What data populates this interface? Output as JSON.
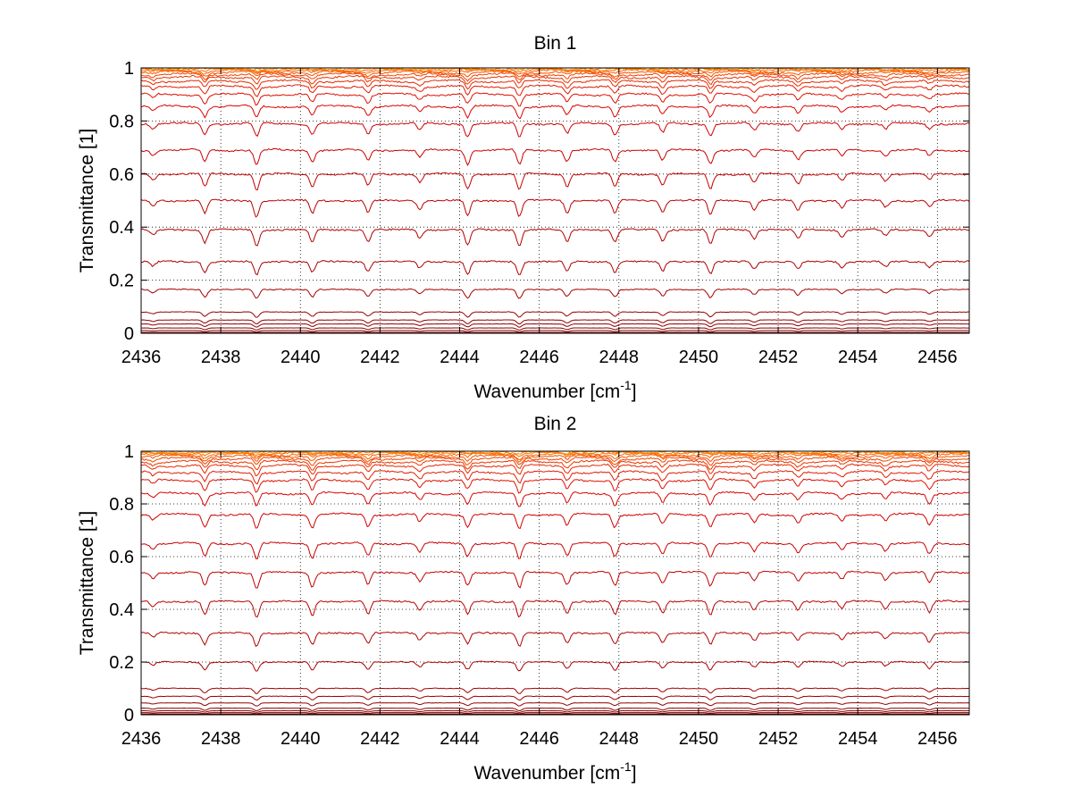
{
  "chart_data": [
    {
      "type": "line",
      "title": "Bin 1",
      "xlabel": "Wavenumber [cm",
      "xlabel_sup": "-1",
      "xlabel_suffix": "]",
      "ylabel": "Transmittance [1]",
      "xlim": [
        2436,
        2456.8
      ],
      "ylim": [
        0,
        1
      ],
      "grid": true,
      "legend": "none",
      "xticks": [
        2436,
        2438,
        2440,
        2442,
        2444,
        2446,
        2448,
        2450,
        2452,
        2454,
        2456
      ],
      "yticks": [
        0,
        0.2,
        0.4,
        0.6,
        0.8,
        1
      ],
      "ytick_labels": [
        "0",
        "0.2",
        "0.4",
        "0.6",
        "0.8",
        "1"
      ],
      "absorption_lines": [
        {
          "x": 2436.3,
          "depth": 0.35
        },
        {
          "x": 2437.6,
          "depth": 0.8
        },
        {
          "x": 2438.9,
          "depth": 1.0
        },
        {
          "x": 2440.3,
          "depth": 0.8
        },
        {
          "x": 2441.7,
          "depth": 0.75
        },
        {
          "x": 2443.0,
          "depth": 0.5
        },
        {
          "x": 2444.2,
          "depth": 0.95
        },
        {
          "x": 2445.5,
          "depth": 1.0
        },
        {
          "x": 2446.7,
          "depth": 0.75
        },
        {
          "x": 2447.9,
          "depth": 0.8
        },
        {
          "x": 2449.1,
          "depth": 0.7
        },
        {
          "x": 2450.3,
          "depth": 0.9
        },
        {
          "x": 2451.4,
          "depth": 0.55
        },
        {
          "x": 2452.5,
          "depth": 0.6
        },
        {
          "x": 2453.6,
          "depth": 0.45
        },
        {
          "x": 2454.7,
          "depth": 0.4
        },
        {
          "x": 2455.8,
          "depth": 0.4
        }
      ],
      "series": [
        {
          "baseline": 0.003,
          "depth": 0.0,
          "color": "#7a0000"
        },
        {
          "baseline": 0.01,
          "depth": 0.005,
          "color": "#7f0000"
        },
        {
          "baseline": 0.02,
          "depth": 0.008,
          "color": "#860000"
        },
        {
          "baseline": 0.035,
          "depth": 0.012,
          "color": "#8c0000"
        },
        {
          "baseline": 0.05,
          "depth": 0.015,
          "color": "#930000"
        },
        {
          "baseline": 0.08,
          "depth": 0.02,
          "color": "#9b0000"
        },
        {
          "baseline": 0.165,
          "depth": 0.035,
          "color": "#a30000"
        },
        {
          "baseline": 0.27,
          "depth": 0.05,
          "color": "#aa0000"
        },
        {
          "baseline": 0.39,
          "depth": 0.06,
          "color": "#b20000"
        },
        {
          "baseline": 0.5,
          "depth": 0.06,
          "color": "#ba0000"
        },
        {
          "baseline": 0.6,
          "depth": 0.06,
          "color": "#c20000"
        },
        {
          "baseline": 0.69,
          "depth": 0.055,
          "color": "#ca0000"
        },
        {
          "baseline": 0.79,
          "depth": 0.05,
          "color": "#d10000"
        },
        {
          "baseline": 0.855,
          "depth": 0.045,
          "color": "#d80500"
        },
        {
          "baseline": 0.9,
          "depth": 0.04,
          "color": "#de1000"
        },
        {
          "baseline": 0.93,
          "depth": 0.035,
          "color": "#e31c00"
        },
        {
          "baseline": 0.95,
          "depth": 0.03,
          "color": "#e82800"
        },
        {
          "baseline": 0.965,
          "depth": 0.025,
          "color": "#ec3600"
        },
        {
          "baseline": 0.975,
          "depth": 0.02,
          "color": "#f04400"
        },
        {
          "baseline": 0.983,
          "depth": 0.015,
          "color": "#f35200"
        },
        {
          "baseline": 0.989,
          "depth": 0.01,
          "color": "#f66000"
        },
        {
          "baseline": 0.993,
          "depth": 0.006,
          "color": "#f96e00"
        },
        {
          "baseline": 0.996,
          "depth": 0.004,
          "color": "#fb7d00"
        },
        {
          "baseline": 0.998,
          "depth": 0.002,
          "color": "#fd8c00"
        }
      ]
    },
    {
      "type": "line",
      "title": "Bin 2",
      "xlabel": "Wavenumber [cm",
      "xlabel_sup": "-1",
      "xlabel_suffix": "]",
      "ylabel": "Transmittance [1]",
      "xlim": [
        2436,
        2456.8
      ],
      "ylim": [
        0,
        1
      ],
      "grid": true,
      "legend": "none",
      "xticks": [
        2436,
        2438,
        2440,
        2442,
        2444,
        2446,
        2448,
        2450,
        2452,
        2454,
        2456
      ],
      "yticks": [
        0,
        0.2,
        0.4,
        0.6,
        0.8,
        1
      ],
      "ytick_labels": [
        "0",
        "0.2",
        "0.4",
        "0.6",
        "0.8",
        "1"
      ],
      "absorption_lines": [
        {
          "x": 2436.3,
          "depth": 0.35
        },
        {
          "x": 2437.6,
          "depth": 0.85
        },
        {
          "x": 2438.9,
          "depth": 1.0
        },
        {
          "x": 2440.3,
          "depth": 0.9
        },
        {
          "x": 2441.7,
          "depth": 0.8
        },
        {
          "x": 2443.0,
          "depth": 0.55
        },
        {
          "x": 2444.2,
          "depth": 0.8
        },
        {
          "x": 2445.5,
          "depth": 1.0
        },
        {
          "x": 2446.7,
          "depth": 0.75
        },
        {
          "x": 2447.9,
          "depth": 0.85
        },
        {
          "x": 2449.1,
          "depth": 0.7
        },
        {
          "x": 2450.3,
          "depth": 0.85
        },
        {
          "x": 2451.4,
          "depth": 0.55
        },
        {
          "x": 2452.5,
          "depth": 0.55
        },
        {
          "x": 2453.6,
          "depth": 0.45
        },
        {
          "x": 2454.7,
          "depth": 0.45
        },
        {
          "x": 2455.8,
          "depth": 0.7
        }
      ],
      "series": [
        {
          "baseline": 0.003,
          "depth": 0.0,
          "color": "#7a0000"
        },
        {
          "baseline": 0.008,
          "depth": 0.004,
          "color": "#7f0000"
        },
        {
          "baseline": 0.015,
          "depth": 0.006,
          "color": "#860000"
        },
        {
          "baseline": 0.025,
          "depth": 0.01,
          "color": "#8c0000"
        },
        {
          "baseline": 0.045,
          "depth": 0.012,
          "color": "#930000"
        },
        {
          "baseline": 0.07,
          "depth": 0.015,
          "color": "#9b0000"
        },
        {
          "baseline": 0.1,
          "depth": 0.02,
          "color": "#a30000"
        },
        {
          "baseline": 0.2,
          "depth": 0.035,
          "color": "#aa0000"
        },
        {
          "baseline": 0.31,
          "depth": 0.05,
          "color": "#b20000"
        },
        {
          "baseline": 0.43,
          "depth": 0.06,
          "color": "#ba0000"
        },
        {
          "baseline": 0.54,
          "depth": 0.06,
          "color": "#c20000"
        },
        {
          "baseline": 0.65,
          "depth": 0.06,
          "color": "#ca0000"
        },
        {
          "baseline": 0.76,
          "depth": 0.055,
          "color": "#d10000"
        },
        {
          "baseline": 0.84,
          "depth": 0.05,
          "color": "#d80500"
        },
        {
          "baseline": 0.89,
          "depth": 0.045,
          "color": "#de1000"
        },
        {
          "baseline": 0.92,
          "depth": 0.04,
          "color": "#e31c00"
        },
        {
          "baseline": 0.945,
          "depth": 0.035,
          "color": "#e82800"
        },
        {
          "baseline": 0.96,
          "depth": 0.03,
          "color": "#ec3600"
        },
        {
          "baseline": 0.972,
          "depth": 0.025,
          "color": "#f04400"
        },
        {
          "baseline": 0.981,
          "depth": 0.02,
          "color": "#f35200"
        },
        {
          "baseline": 0.987,
          "depth": 0.014,
          "color": "#f66000"
        },
        {
          "baseline": 0.992,
          "depth": 0.009,
          "color": "#f96e00"
        },
        {
          "baseline": 0.995,
          "depth": 0.006,
          "color": "#fb7d00"
        },
        {
          "baseline": 0.998,
          "depth": 0.003,
          "color": "#fd8c00"
        }
      ]
    }
  ]
}
